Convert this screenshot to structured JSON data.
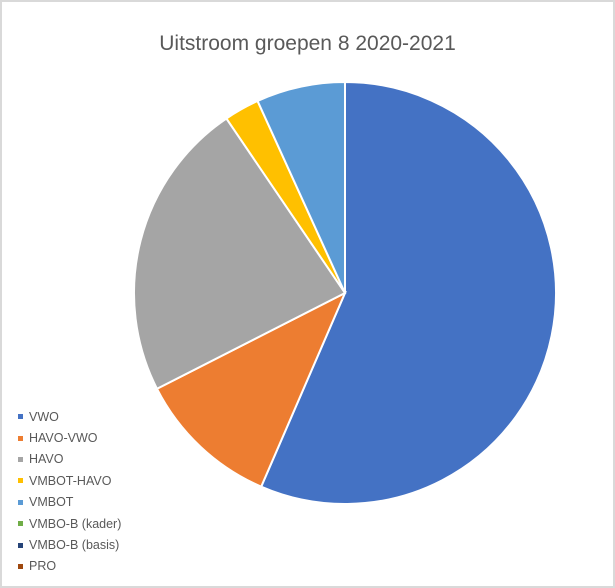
{
  "chart_data": {
    "type": "pie",
    "title": "Uitstroom groepen 8 2020-2021",
    "legend_position": "bottom-left",
    "start_angle_deg": 0,
    "direction": "clockwise",
    "slices": [
      {
        "label": "VWO",
        "value": 56.5,
        "color": "#4472c4"
      },
      {
        "label": "HAVO-VWO",
        "value": 11.0,
        "color": "#ed7d31"
      },
      {
        "label": "HAVO",
        "value": 23.0,
        "color": "#a5a5a5"
      },
      {
        "label": "VMBOT-HAVO",
        "value": 2.7,
        "color": "#ffc000"
      },
      {
        "label": "VMBOT",
        "value": 6.8,
        "color": "#5b9bd5"
      },
      {
        "label": "VMBO-B (kader)",
        "value": 0,
        "color": "#70ad47"
      },
      {
        "label": "VMBO-B (basis)",
        "value": 0,
        "color": "#264478"
      },
      {
        "label": "PRO",
        "value": 0,
        "color": "#9e480e"
      }
    ]
  }
}
